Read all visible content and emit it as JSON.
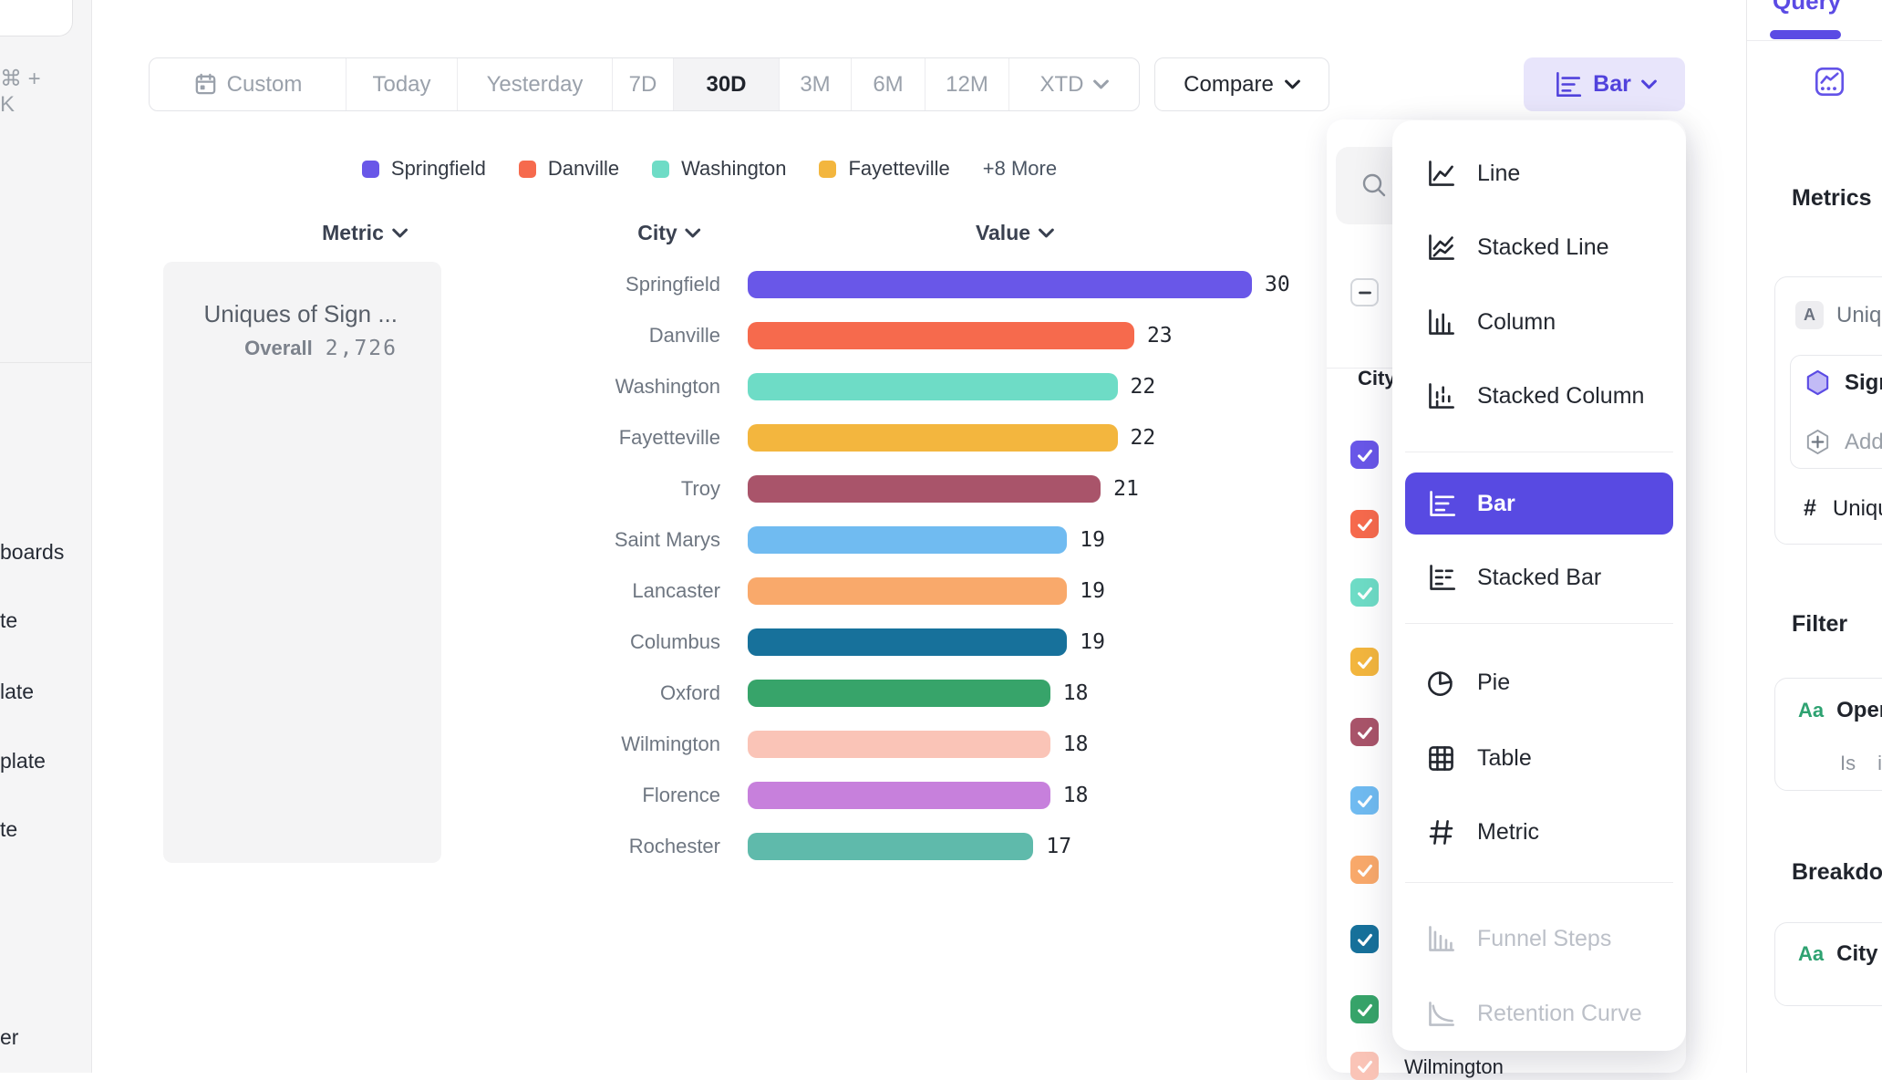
{
  "app": {
    "accent": "#5b4be4",
    "accent_fill": "#584ae2",
    "lavender": "#e8e5fb"
  },
  "left_rail": {
    "shortcut": "⌘ + K",
    "items": [
      "boards",
      "te",
      "late",
      "plate",
      "te",
      "er"
    ]
  },
  "toolbar": {
    "ranges": [
      {
        "label": "Custom",
        "icon": "calendar-icon"
      },
      {
        "label": "Today"
      },
      {
        "label": "Yesterday"
      },
      {
        "label": "7D"
      },
      {
        "label": "30D",
        "selected": true
      },
      {
        "label": "3M"
      },
      {
        "label": "6M"
      },
      {
        "label": "12M"
      },
      {
        "label": "XTD",
        "chevron": true
      }
    ],
    "compare": {
      "label": "Compare"
    },
    "chart_type": {
      "label": "Bar",
      "icon": "bar-chart-icon"
    }
  },
  "legend": {
    "visible_count": 4,
    "more_label": "+8 More"
  },
  "table": {
    "headers": [
      {
        "label": "Metric"
      },
      {
        "label": "City"
      },
      {
        "label": "Value"
      }
    ]
  },
  "metric_card": {
    "title": "Uniques of Sign ...",
    "overall_label": "Overall",
    "overall_value": "2,726"
  },
  "chart_data": {
    "type": "bar",
    "title": "Uniques of Sign ...",
    "overall": "2,726",
    "categories": [
      "Springfield",
      "Danville",
      "Washington",
      "Fayetteville",
      "Troy",
      "Saint Marys",
      "Lancaster",
      "Columbus",
      "Oxford",
      "Wilmington",
      "Florence",
      "Rochester"
    ],
    "values": [
      30,
      23,
      22,
      22,
      21,
      19,
      19,
      19,
      18,
      18,
      18,
      17
    ],
    "colors": [
      "#6957e8",
      "#f66a4d",
      "#6edcc6",
      "#f3b63e",
      "#a9546a",
      "#70bbf1",
      "#f9a96b",
      "#17719b",
      "#37a46a",
      "#fac4b7",
      "#c780dc",
      "#5fbaab"
    ],
    "xlim": [
      0,
      30
    ],
    "legend_position": "top",
    "grid": false
  },
  "filter_panel": {
    "column_label": "City",
    "partial_row_label": "Wilmington"
  },
  "chart_menu": {
    "groups": [
      {
        "items": [
          {
            "label": "Line",
            "icon": "line"
          },
          {
            "label": "Stacked Line",
            "icon": "stacked-line"
          },
          {
            "label": "Column",
            "icon": "column"
          },
          {
            "label": "Stacked Column",
            "icon": "stacked-column"
          }
        ]
      },
      {
        "items": [
          {
            "label": "Bar",
            "icon": "bar",
            "selected": true
          },
          {
            "label": "Stacked Bar",
            "icon": "stacked-bar"
          }
        ]
      },
      {
        "items": [
          {
            "label": "Pie",
            "icon": "pie"
          },
          {
            "label": "Table",
            "icon": "table"
          },
          {
            "label": "Metric",
            "icon": "metric"
          }
        ]
      },
      {
        "items": [
          {
            "label": "Funnel Steps",
            "icon": "funnel",
            "disabled": true
          },
          {
            "label": "Retention Curve",
            "icon": "retention",
            "disabled": true
          }
        ]
      }
    ]
  },
  "sidebar": {
    "tab": "Query",
    "metrics": {
      "heading": "Metrics",
      "event_badge": "A",
      "event_label": "Uniqu",
      "hex_label": "Sign",
      "add_label": "Add",
      "hash_glyph": "#",
      "measure_label": "Uniqu"
    },
    "filter": {
      "heading": "Filter",
      "type_badge": "Aa",
      "label": "Opera",
      "operator": "Is",
      "operand": "i"
    },
    "breakdown": {
      "heading": "Breakdown",
      "type_badge": "Aa",
      "label": "City"
    }
  }
}
